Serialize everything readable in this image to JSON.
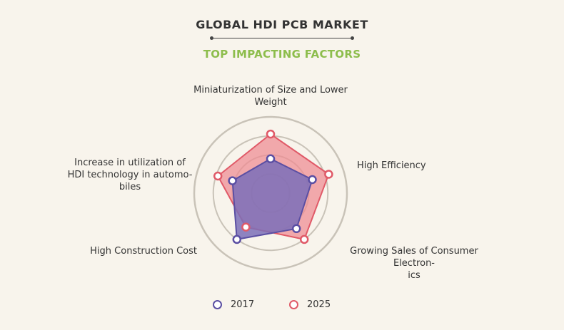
{
  "header": {
    "title": "GLOBAL HDI PCB MARKET",
    "subtitle": "TOP IMPACTING FACTORS"
  },
  "colors": {
    "series_2017": "#5b4fa3",
    "series_2025": "#e05a68",
    "fill_2017": "#7b6fb8",
    "fill_2025": "#ef8a92",
    "grid": "#c9c3b8",
    "subtitle": "#8dbd4c"
  },
  "chart_data": {
    "type": "radar",
    "title": "GLOBAL HDI PCB MARKET",
    "subtitle": "TOP IMPACTING FACTORS",
    "axes": [
      "Miniaturization of Size and Lower Weight",
      "High Efficiency",
      "Growing Sales of Consumer Electronics",
      "High Construction Cost",
      "Increase in utilization of HDI technology in automobiles"
    ],
    "axis_label_lines": [
      [
        "Miniaturization of Size and Lower",
        "Weight"
      ],
      [
        "High Efficiency"
      ],
      [
        "Growing Sales of Consumer Electron-",
        "ics"
      ],
      [
        "High Construction Cost"
      ],
      [
        "Increase in utilization of",
        "HDI technology in automo-",
        "biles"
      ]
    ],
    "rlim": [
      0,
      4
    ],
    "grid_rings": 4,
    "legend_position": "bottom",
    "series": [
      {
        "name": "2017",
        "values": [
          1.8,
          2.3,
          2.3,
          3.0,
          2.1
        ]
      },
      {
        "name": "2025",
        "values": [
          3.1,
          3.2,
          3.0,
          2.2,
          2.9
        ]
      }
    ]
  }
}
